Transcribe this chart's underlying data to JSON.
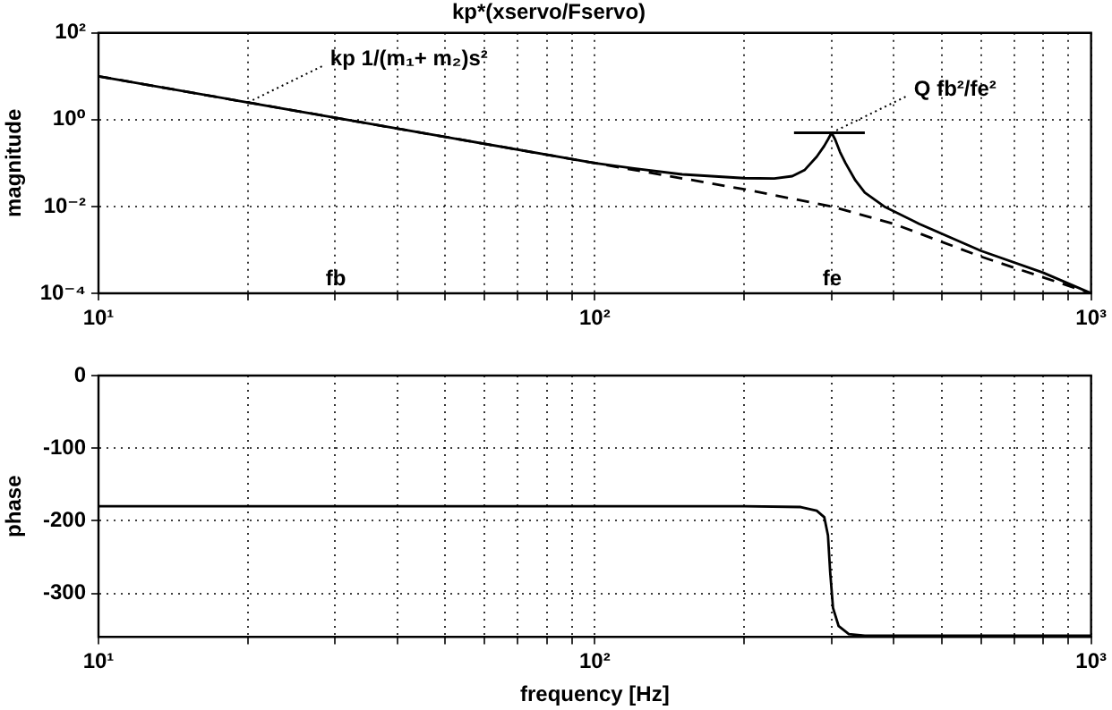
{
  "chart_data": [
    {
      "type": "line",
      "title": "kp*(xservo/Fservo)",
      "ylabel": "magnitude",
      "log": "xy",
      "grid": true,
      "xlim": [
        10,
        1000
      ],
      "xticks": [
        {
          "value": 10,
          "label": "10¹"
        },
        {
          "value": 20,
          "label": null
        },
        {
          "value": 30,
          "label": null
        },
        {
          "value": 40,
          "label": null
        },
        {
          "value": 50,
          "label": null
        },
        {
          "value": 60,
          "label": null
        },
        {
          "value": 70,
          "label": null
        },
        {
          "value": 80,
          "label": null
        },
        {
          "value": 90,
          "label": null
        },
        {
          "value": 100,
          "label": "10²"
        },
        {
          "value": 200,
          "label": null
        },
        {
          "value": 300,
          "label": null
        },
        {
          "value": 400,
          "label": null
        },
        {
          "value": 500,
          "label": null
        },
        {
          "value": 600,
          "label": null
        },
        {
          "value": 700,
          "label": null
        },
        {
          "value": 800,
          "label": null
        },
        {
          "value": 900,
          "label": null
        },
        {
          "value": 1000,
          "label": "10³"
        }
      ],
      "ylim": [
        0.0001,
        100
      ],
      "yticks": [
        {
          "value": 0.0001,
          "label": "10⁻⁴"
        },
        {
          "value": 0.01,
          "label": "10⁻²"
        },
        {
          "value": 1,
          "label": "10⁰"
        },
        {
          "value": 100,
          "label": "10²"
        }
      ],
      "series": [
        {
          "color": "#000000",
          "line_style": "solid",
          "x": [
            10,
            20,
            50,
            100,
            120,
            150,
            200,
            230,
            250,
            265,
            280,
            290,
            295,
            300,
            305,
            312,
            320,
            335,
            350,
            383,
            450,
            600,
            800,
            1000
          ],
          "values": [
            10,
            2.5,
            0.4,
            0.1,
            0.075,
            0.055,
            0.045,
            0.044,
            0.05,
            0.07,
            0.14,
            0.25,
            0.35,
            0.5,
            0.35,
            0.18,
            0.1,
            0.04,
            0.021,
            0.01,
            0.004,
            0.00095,
            0.0003,
            0.0001
          ]
        },
        {
          "color": "#000000",
          "line_style": "dashed",
          "x": [
            10,
            100,
            200,
            300,
            400,
            600,
            1000
          ],
          "values": [
            10,
            0.1,
            0.025,
            0.01,
            0.004,
            0.0007,
            0.0001
          ]
        },
        {
          "color": "#000000",
          "line_style": "solid",
          "x": [
            252,
            350
          ],
          "values": [
            0.5,
            0.5
          ]
        }
      ],
      "annotations": [
        {
          "text": "kp 1/(m₁+ m₂)s²",
          "x": 20,
          "y": 2.5
        },
        {
          "text": "Q fb²/fe²",
          "x": 300,
          "y": 0.5
        },
        "fb",
        "fe"
      ]
    },
    {
      "type": "line",
      "xlabel": "frequency [Hz]",
      "ylabel": "phase",
      "log": "x",
      "grid": true,
      "xlim": [
        10,
        1000
      ],
      "xticks": [
        {
          "value": 10,
          "label": "10¹"
        },
        {
          "value": 20,
          "label": null
        },
        {
          "value": 30,
          "label": null
        },
        {
          "value": 40,
          "label": null
        },
        {
          "value": 50,
          "label": null
        },
        {
          "value": 60,
          "label": null
        },
        {
          "value": 70,
          "label": null
        },
        {
          "value": 80,
          "label": null
        },
        {
          "value": 90,
          "label": null
        },
        {
          "value": 100,
          "label": "10²"
        },
        {
          "value": 200,
          "label": null
        },
        {
          "value": 300,
          "label": null
        },
        {
          "value": 400,
          "label": null
        },
        {
          "value": 500,
          "label": null
        },
        {
          "value": 600,
          "label": null
        },
        {
          "value": 700,
          "label": null
        },
        {
          "value": 800,
          "label": null
        },
        {
          "value": 900,
          "label": null
        },
        {
          "value": 1000,
          "label": "10³"
        }
      ],
      "ylim": [
        -360,
        0
      ],
      "yticks": [
        -300,
        -200,
        -100,
        0
      ],
      "series": [
        {
          "color": "#000000",
          "line_style": "solid",
          "x": [
            10,
            200,
            260,
            280,
            290,
            295,
            298,
            302,
            310,
            325,
            350,
            1000
          ],
          "values": [
            -180,
            -180,
            -181,
            -186,
            -195,
            -220,
            -270,
            -320,
            -345,
            -356,
            -358,
            -358
          ]
        }
      ]
    }
  ]
}
